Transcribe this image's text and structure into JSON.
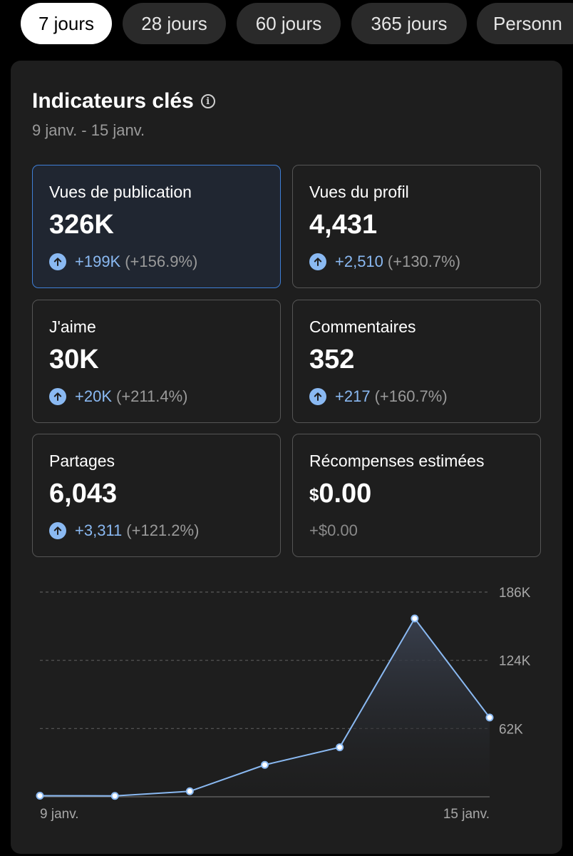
{
  "tabs": [
    {
      "label": "7 jours",
      "active": true
    },
    {
      "label": "28 jours",
      "active": false
    },
    {
      "label": "60 jours",
      "active": false
    },
    {
      "label": "365 jours",
      "active": false
    },
    {
      "label": "Personn",
      "active": false
    }
  ],
  "header": {
    "title": "Indicateurs clés",
    "date_range": "9 janv. - 15 janv."
  },
  "metrics": [
    {
      "label": "Vues de publication",
      "value": "326K",
      "delta_abs": "+199K",
      "delta_pct": "(+156.9%)",
      "selected": true
    },
    {
      "label": "Vues du profil",
      "value": "4,431",
      "delta_abs": "+2,510",
      "delta_pct": "(+130.7%)"
    },
    {
      "label": "J'aime",
      "value": "30K",
      "delta_abs": "+20K",
      "delta_pct": "(+211.4%)"
    },
    {
      "label": "Commentaires",
      "value": "352",
      "delta_abs": "+217",
      "delta_pct": "(+160.7%)"
    },
    {
      "label": "Partages",
      "value": "6,043",
      "delta_abs": "+3,311",
      "delta_pct": "(+121.2%)"
    },
    {
      "label": "Récompenses estimées",
      "currency": "$",
      "value": "0.00",
      "delta": "+$0.00"
    }
  ],
  "colors": {
    "accent": "#8ab9f2",
    "selected_border": "#3f7fd6",
    "card_bg": "#1e1e1e"
  },
  "chart_data": {
    "type": "area",
    "x": [
      "9 janv.",
      "10 janv.",
      "11 janv.",
      "12 janv.",
      "13 janv.",
      "14 janv.",
      "15 janv."
    ],
    "x_tick_labels": [
      "9 janv.",
      "15 janv."
    ],
    "values": [
      1000,
      800,
      5000,
      29000,
      45000,
      162000,
      72000
    ],
    "y_ticks": [
      "186K",
      "124K",
      "62K"
    ],
    "y_tick_values": [
      186000,
      124000,
      62000
    ],
    "ylim": [
      0,
      186000
    ],
    "grid": true,
    "series_color": "#8ab9f2"
  }
}
